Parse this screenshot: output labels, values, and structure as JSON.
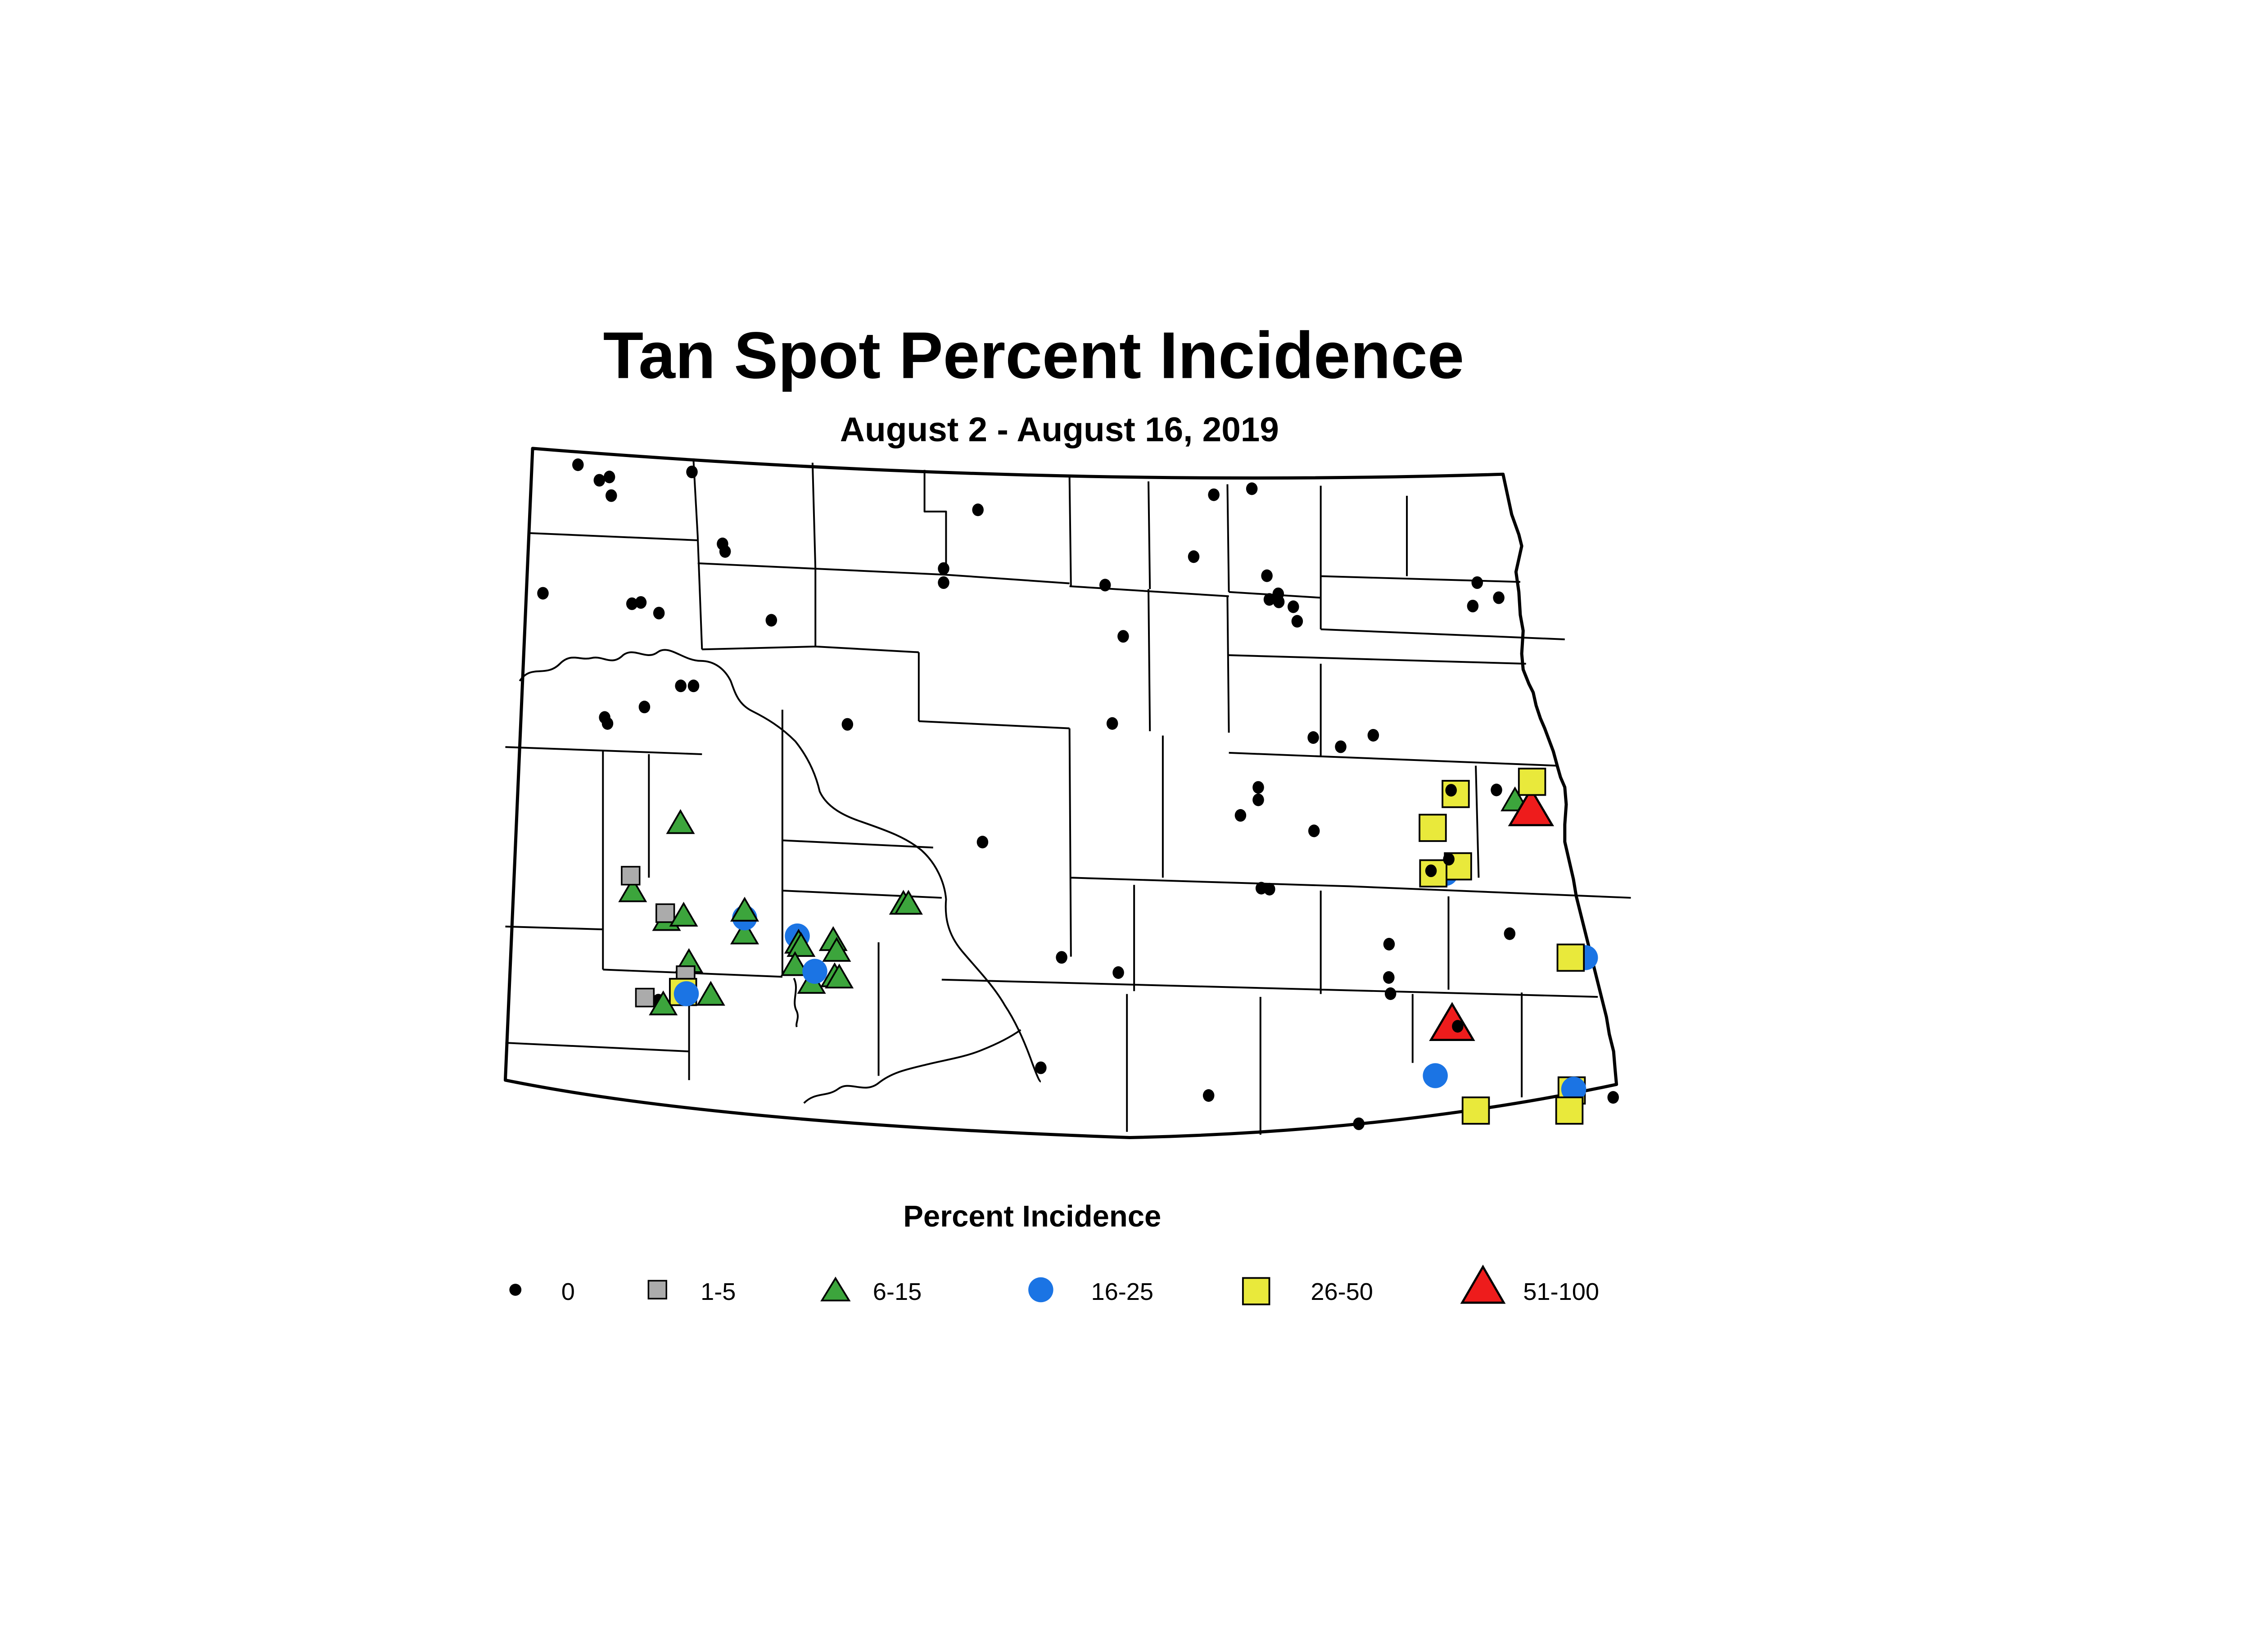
{
  "title": "Tan Spot Percent Incidence",
  "subtitle": "August 2 - August 16, 2019",
  "legend": {
    "title": "Percent Incidence",
    "items": [
      {
        "label": "0",
        "shape": "dot",
        "color": "#000000"
      },
      {
        "label": "1-5",
        "shape": "square",
        "color": "#ABABAB"
      },
      {
        "label": "6-15",
        "shape": "triangle",
        "color": "#3CA53C"
      },
      {
        "label": "16-25",
        "shape": "circle",
        "color": "#1B74E4"
      },
      {
        "label": "26-50",
        "shape": "square",
        "color": "#E9E93B"
      },
      {
        "label": "51-100",
        "shape": "triangle",
        "color": "#EE1C1C"
      }
    ]
  },
  "chart_data": {
    "type": "map",
    "map_region": "North Dakota counties",
    "title": "Tan Spot Percent Incidence",
    "subtitle": "August 2 - August 16, 2019",
    "legend_title": "Percent Incidence",
    "categories": [
      "0",
      "1-5",
      "6-15",
      "16-25",
      "26-50",
      "51-100"
    ],
    "category_meaning": "percent incidence class of tan spot at each survey site",
    "points": [
      {
        "cat": "0",
        "x": 402.6,
        "y": 169.4
      },
      {
        "cat": "0",
        "x": 424.5,
        "y": 177.9
      },
      {
        "cat": "0",
        "x": 417.5,
        "y": 180.2
      },
      {
        "cat": "0",
        "x": 482.0,
        "y": 174.4
      },
      {
        "cat": "0",
        "x": 425.8,
        "y": 190.9
      },
      {
        "cat": "0",
        "x": 681.2,
        "y": 200.8
      },
      {
        "cat": "0",
        "x": 503.3,
        "y": 224.5
      },
      {
        "cat": "0",
        "x": 505.1,
        "y": 229.8
      },
      {
        "cat": "0",
        "x": 657.3,
        "y": 241.7
      },
      {
        "cat": "0",
        "x": 657.3,
        "y": 251.5
      },
      {
        "cat": "0",
        "x": 378.2,
        "y": 258.9
      },
      {
        "cat": "0",
        "x": 440.2,
        "y": 266.2
      },
      {
        "cat": "0",
        "x": 446.4,
        "y": 265.3
      },
      {
        "cat": "0",
        "x": 459.0,
        "y": 272.7
      },
      {
        "cat": "0",
        "x": 537.3,
        "y": 277.7
      },
      {
        "cat": "0",
        "x": 474.2,
        "y": 323.4
      },
      {
        "cat": "0",
        "x": 483.1,
        "y": 323.4
      },
      {
        "cat": "0",
        "x": 448.9,
        "y": 338.1
      },
      {
        "cat": "0",
        "x": 421.2,
        "y": 345.4
      },
      {
        "cat": "0",
        "x": 423.2,
        "y": 349.6
      },
      {
        "cat": "0",
        "x": 590.3,
        "y": 350.2
      },
      {
        "cat": "0",
        "x": 845.5,
        "y": 190.3
      },
      {
        "cat": "0",
        "x": 872.0,
        "y": 186.1
      },
      {
        "cat": "0",
        "x": 831.5,
        "y": 233.4
      },
      {
        "cat": "0",
        "x": 769.8,
        "y": 253.2
      },
      {
        "cat": "0",
        "x": 882.5,
        "y": 246.7
      },
      {
        "cat": "0",
        "x": 890.4,
        "y": 259.3
      },
      {
        "cat": "0",
        "x": 884.2,
        "y": 263.2
      },
      {
        "cat": "0",
        "x": 890.8,
        "y": 264.9
      },
      {
        "cat": "0",
        "x": 900.9,
        "y": 268.3
      },
      {
        "cat": "0",
        "x": 903.6,
        "y": 278.4
      },
      {
        "cat": "0",
        "x": 1029.0,
        "y": 251.5
      },
      {
        "cat": "0",
        "x": 1044.0,
        "y": 262.0
      },
      {
        "cat": "0",
        "x": 1025.9,
        "y": 267.8
      },
      {
        "cat": "0",
        "x": 782.4,
        "y": 288.9
      },
      {
        "cat": "0",
        "x": 774.8,
        "y": 349.6
      },
      {
        "cat": "0",
        "x": 914.8,
        "y": 359.4
      },
      {
        "cat": "0",
        "x": 933.9,
        "y": 365.8
      },
      {
        "cat": "0",
        "x": 956.6,
        "y": 357.8
      },
      {
        "cat": "0",
        "x": 1042.4,
        "y": 395.9
      },
      {
        "cat": "0",
        "x": 876.5,
        "y": 394.1
      },
      {
        "cat": "0",
        "x": 876.5,
        "y": 402.8
      },
      {
        "cat": "0",
        "x": 864.1,
        "y": 413.6
      },
      {
        "cat": "0",
        "x": 915.3,
        "y": 424.4
      },
      {
        "cat": "0",
        "x": 684.4,
        "y": 432.2
      },
      {
        "cat": "0",
        "x": 878.6,
        "y": 464.3
      },
      {
        "cat": "0",
        "x": 884.3,
        "y": 465.0
      },
      {
        "cat": "0",
        "x": 739.5,
        "y": 512.5
      },
      {
        "cat": "0",
        "x": 779.0,
        "y": 523.1
      },
      {
        "cat": "0",
        "x": 725.0,
        "y": 589.4
      },
      {
        "cat": "0",
        "x": 841.9,
        "y": 608.7
      },
      {
        "cat": "0",
        "x": 946.5,
        "y": 628.4
      },
      {
        "cat": "0",
        "x": 1123.7,
        "y": 610.0
      },
      {
        "cat": "0",
        "x": 967.6,
        "y": 503.3
      },
      {
        "cat": "0",
        "x": 1051.6,
        "y": 496.0
      },
      {
        "cat": "0",
        "x": 967.4,
        "y": 526.5
      },
      {
        "cat": "0",
        "x": 968.6,
        "y": 537.8
      },
      {
        "cat": "6-15",
        "x": 474.0,
        "y": 418.2
      },
      {
        "cat": "6-15",
        "x": 440.7,
        "y": 465.7
      },
      {
        "cat": "1-5",
        "x": 439.3,
        "y": 455.6
      },
      {
        "cat": "6-15",
        "x": 464.3,
        "y": 485.7
      },
      {
        "cat": "1-5",
        "x": 463.4,
        "y": 481.7
      },
      {
        "cat": "6-15",
        "x": 476.2,
        "y": 482.7
      },
      {
        "cat": "6-15",
        "x": 518.7,
        "y": 495.1
      },
      {
        "cat": "16-25",
        "x": 518.7,
        "y": 485.0
      },
      {
        "cat": "6-15",
        "x": 518.7,
        "y": 479.2
      },
      {
        "cat": "6-15",
        "x": 629.3,
        "y": 474.4
      },
      {
        "cat": "6-15",
        "x": 632.8,
        "y": 474.4
      },
      {
        "cat": "16-25",
        "x": 555.4,
        "y": 497.6
      },
      {
        "cat": "6-15",
        "x": 556.3,
        "y": 501.5
      },
      {
        "cat": "6-15",
        "x": 558.0,
        "y": 503.8
      },
      {
        "cat": "6-15",
        "x": 580.4,
        "y": 499.7
      },
      {
        "cat": "6-15",
        "x": 582.8,
        "y": 507.2
      },
      {
        "cat": "6-15",
        "x": 553.8,
        "y": 517.1
      },
      {
        "cat": "6-15",
        "x": 581.4,
        "y": 524.9
      },
      {
        "cat": "6-15",
        "x": 584.6,
        "y": 525.8
      },
      {
        "cat": "6-15",
        "x": 565.3,
        "y": 529.5
      },
      {
        "cat": "16-25",
        "x": 567.6,
        "y": 522.2
      },
      {
        "cat": "6-15",
        "x": 479.9,
        "y": 515.0
      },
      {
        "cat": "1-5",
        "x": 477.6,
        "y": 524.9
      },
      {
        "cat": "26-50",
        "x": 475.8,
        "y": 536.6
      },
      {
        "cat": "16-25",
        "x": 478.1,
        "y": 537.8
      },
      {
        "cat": "6-15",
        "x": 495.1,
        "y": 537.8
      },
      {
        "cat": "0",
        "x": 458.6,
        "y": 542.3
      },
      {
        "cat": "1-5",
        "x": 449.2,
        "y": 540.5
      },
      {
        "cat": "6-15",
        "x": 462.0,
        "y": 544.5
      },
      {
        "cat": "6-15",
        "x": 1055.3,
        "y": 402.4
      },
      {
        "cat": "51-100",
        "x": 1066.5,
        "y": 407.9
      },
      {
        "cat": "26-50",
        "x": 1067.2,
        "y": 390.2
      },
      {
        "cat": "26-50",
        "x": 1014.0,
        "y": 398.7
      },
      {
        "cat": "0",
        "x": 1010.8,
        "y": 396.1
      },
      {
        "cat": "26-50",
        "x": 998.0,
        "y": 422.3
      },
      {
        "cat": "16-25",
        "x": 1007.0,
        "y": 454.0
      },
      {
        "cat": "26-50",
        "x": 1015.6,
        "y": 449.1
      },
      {
        "cat": "26-50",
        "x": 998.4,
        "y": 454.0
      },
      {
        "cat": "0",
        "x": 1009.2,
        "y": 444.1
      },
      {
        "cat": "0",
        "x": 996.8,
        "y": 452.2
      },
      {
        "cat": "51-100",
        "x": 1011.5,
        "y": 557.5
      },
      {
        "cat": "0",
        "x": 1015.4,
        "y": 560.5
      },
      {
        "cat": "16-25",
        "x": 999.8,
        "y": 594.9
      },
      {
        "cat": "26-50",
        "x": 1028.0,
        "y": 619.2
      },
      {
        "cat": "16-25",
        "x": 1104.4,
        "y": 512.7
      },
      {
        "cat": "26-50",
        "x": 1094.1,
        "y": 512.7
      },
      {
        "cat": "26-50",
        "x": 1094.8,
        "y": 605.2
      },
      {
        "cat": "16-25",
        "x": 1096.2,
        "y": 604.3
      },
      {
        "cat": "26-50",
        "x": 1093.2,
        "y": 619.2
      }
    ]
  }
}
